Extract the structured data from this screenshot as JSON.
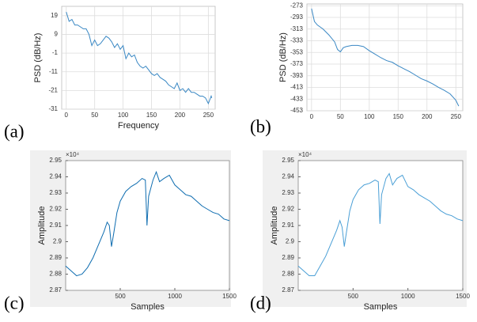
{
  "chart_data": [
    {
      "type": "line",
      "panel_label": "(a)",
      "x_label": "Frequency",
      "y_label": "PSD (dB/Hz)",
      "grid": true,
      "xlim": [
        -8,
        262
      ],
      "ylim": [
        -31,
        24
      ],
      "xticks": [
        0,
        50,
        100,
        150,
        200,
        250
      ],
      "yticks": [
        19,
        9,
        -1,
        -11,
        -21,
        -31
      ],
      "series": [
        {
          "color": "#3a88c4",
          "x": [
            0,
            5,
            10,
            15,
            20,
            25,
            30,
            35,
            40,
            45,
            50,
            55,
            60,
            65,
            70,
            75,
            80,
            85,
            90,
            95,
            100,
            105,
            110,
            115,
            120,
            125,
            130,
            135,
            140,
            145,
            150,
            155,
            160,
            165,
            170,
            175,
            180,
            185,
            190,
            195,
            200,
            205,
            210,
            215,
            220,
            225,
            230,
            235,
            240,
            245,
            250,
            255,
            256
          ],
          "values": [
            21,
            16,
            17,
            14,
            14,
            13,
            12,
            12,
            9,
            3,
            6,
            3,
            4,
            6,
            8,
            7,
            5,
            2,
            4,
            1,
            3,
            -4,
            -1,
            -3,
            -2,
            -6,
            -8,
            -9,
            -8,
            -10,
            -12,
            -13,
            -12,
            -14,
            -15,
            -16,
            -18,
            -19,
            -20,
            -17,
            -21,
            -20,
            -22,
            -20,
            -22,
            -22,
            -23,
            -24,
            -24,
            -25,
            -28,
            -24,
            -25
          ]
        }
      ]
    },
    {
      "type": "line",
      "panel_label": "(b)",
      "y_label": "PSD (dB/Hz)",
      "grid": true,
      "xlim": [
        -8,
        262
      ],
      "ylim": [
        -453,
        -270
      ],
      "xticks": [
        0,
        50,
        100,
        150,
        200,
        250
      ],
      "yticks": [
        -273,
        -293,
        -313,
        -333,
        -353,
        -373,
        -393,
        -413,
        -433,
        -453
      ],
      "series": [
        {
          "color": "#3a88c4",
          "x": [
            0,
            5,
            10,
            20,
            30,
            40,
            45,
            50,
            55,
            60,
            70,
            80,
            90,
            100,
            110,
            120,
            130,
            140,
            150,
            160,
            170,
            180,
            190,
            200,
            210,
            220,
            230,
            240,
            250,
            255
          ],
          "values": [
            -278,
            -300,
            -306,
            -313,
            -323,
            -335,
            -348,
            -352,
            -345,
            -343,
            -341,
            -341,
            -343,
            -350,
            -356,
            -362,
            -367,
            -370,
            -376,
            -381,
            -386,
            -392,
            -398,
            -402,
            -407,
            -413,
            -418,
            -424,
            -435,
            -445
          ]
        }
      ]
    },
    {
      "type": "line",
      "panel_label": "(c)",
      "x_label": "Samples",
      "y_label": "Amplitude",
      "offset_label": "×10⁴",
      "grid": false,
      "xlim": [
        0,
        1500
      ],
      "ylim": [
        2.87,
        2.95
      ],
      "xticks": [
        500,
        1000,
        1500
      ],
      "yticks": [
        2.87,
        2.88,
        2.89,
        2.9,
        2.91,
        2.92,
        2.93,
        2.94,
        2.95
      ],
      "series": [
        {
          "color": "#0f6db0",
          "x": [
            0,
            50,
            100,
            150,
            200,
            250,
            300,
            350,
            380,
            400,
            420,
            440,
            470,
            500,
            550,
            600,
            650,
            700,
            730,
            745,
            760,
            800,
            830,
            860,
            900,
            950,
            1000,
            1050,
            1100,
            1150,
            1200,
            1250,
            1300,
            1350,
            1400,
            1450,
            1500
          ],
          "values": [
            2.885,
            2.882,
            2.879,
            2.88,
            2.884,
            2.89,
            2.898,
            2.906,
            2.912,
            2.91,
            2.897,
            2.905,
            2.918,
            2.925,
            2.931,
            2.934,
            2.936,
            2.939,
            2.938,
            2.91,
            2.928,
            2.938,
            2.943,
            2.937,
            2.939,
            2.941,
            2.935,
            2.932,
            2.929,
            2.928,
            2.925,
            2.922,
            2.92,
            2.918,
            2.917,
            2.914,
            2.913
          ]
        }
      ]
    },
    {
      "type": "line",
      "panel_label": "(d)",
      "x_label": "Samples",
      "y_label": "Amplitude",
      "offset_label": "×10⁴",
      "grid": false,
      "xlim": [
        0,
        1500
      ],
      "ylim": [
        2.87,
        2.95
      ],
      "xticks": [
        500,
        1000,
        1500
      ],
      "yticks": [
        2.87,
        2.88,
        2.89,
        2.9,
        2.91,
        2.92,
        2.93,
        2.94,
        2.95
      ],
      "series": [
        {
          "color": "#4a9fd6",
          "x": [
            0,
            50,
            100,
            150,
            200,
            250,
            300,
            350,
            380,
            400,
            420,
            440,
            470,
            500,
            550,
            600,
            650,
            700,
            730,
            745,
            760,
            800,
            830,
            860,
            900,
            950,
            1000,
            1050,
            1100,
            1150,
            1200,
            1250,
            1300,
            1350,
            1400,
            1450,
            1500
          ],
          "values": [
            2.885,
            2.882,
            2.879,
            2.879,
            2.885,
            2.891,
            2.899,
            2.907,
            2.913,
            2.909,
            2.897,
            2.906,
            2.919,
            2.926,
            2.932,
            2.935,
            2.936,
            2.938,
            2.937,
            2.911,
            2.929,
            2.939,
            2.942,
            2.935,
            2.939,
            2.941,
            2.934,
            2.932,
            2.929,
            2.927,
            2.925,
            2.922,
            2.919,
            2.917,
            2.916,
            2.914,
            2.913
          ]
        }
      ]
    }
  ]
}
